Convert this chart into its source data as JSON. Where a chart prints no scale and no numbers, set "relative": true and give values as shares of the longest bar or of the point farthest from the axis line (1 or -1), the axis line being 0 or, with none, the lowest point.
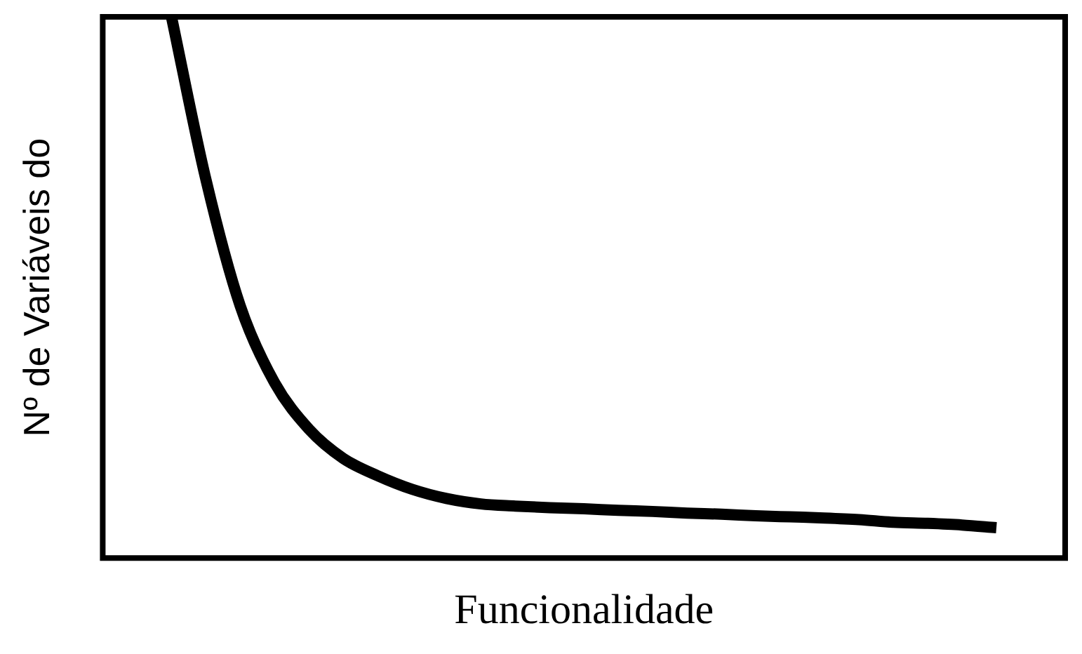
{
  "chart_data": {
    "type": "line",
    "relative": true,
    "xlabel": "Funcionalidade",
    "ylabel": "Nº de Variáveis do",
    "categories": [
      null,
      null,
      null,
      null,
      null,
      null,
      null,
      null,
      null,
      null,
      null,
      null,
      null,
      null,
      null,
      null,
      null,
      null,
      null,
      null,
      null,
      null,
      null,
      null,
      null,
      null,
      null,
      null,
      null
    ],
    "series": [
      {
        "color": "#000000",
        "values": [
          null,
          null,
          1.0,
          0.7,
          0.466,
          0.324,
          0.238,
          0.184,
          0.152,
          0.127,
          0.11,
          0.1,
          0.096,
          0.093,
          0.091,
          0.088,
          0.086,
          0.083,
          0.081,
          0.078,
          0.076,
          0.074,
          0.071,
          0.066,
          0.064,
          0.061,
          0.056,
          null,
          null
        ]
      }
    ],
    "grid": false,
    "legend": false,
    "marker": "none",
    "line_style": "solid"
  }
}
